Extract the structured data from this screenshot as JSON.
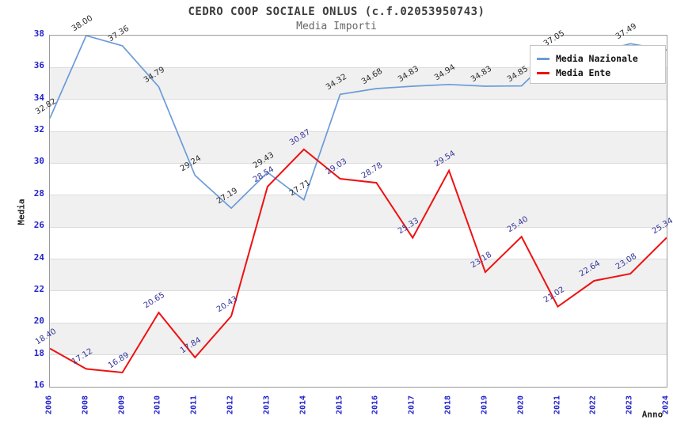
{
  "title": "CEDRO COOP SOCIALE ONLUS (c.f.02053950743)",
  "subtitle": "Media Importi",
  "colors": {
    "nazionale_line": "#6b9bd8",
    "ente_line": "#ee1111",
    "axis_tick_text": "#2222cc",
    "nazionale_label_text": "#2b2b2b",
    "ente_label_text": "#333399",
    "band_gray": "#f0f0f0",
    "grid": "#dcdcdc"
  },
  "chart_data": {
    "type": "line",
    "x": [
      "2006",
      "2008",
      "2009",
      "2010",
      "2011",
      "2012",
      "2013",
      "2014",
      "2015",
      "2016",
      "2017",
      "2018",
      "2019",
      "2020",
      "2021",
      "2022",
      "2023",
      "2024"
    ],
    "xlabel": "Anno",
    "ylabel": "Media",
    "ylim": [
      16,
      38
    ],
    "yticks": [
      16,
      18,
      20,
      22,
      24,
      26,
      28,
      30,
      32,
      34,
      36,
      38
    ],
    "grid": "horizontal",
    "banding": "alternating gray bands every 2 units",
    "legend_position": "top-right",
    "series": [
      {
        "name": "Media Nazionale",
        "color": "#6b9bd8",
        "label_color": "#2b2b2b",
        "values": [
          32.82,
          38.0,
          37.36,
          34.79,
          29.24,
          27.19,
          29.43,
          27.71,
          34.32,
          34.68,
          34.83,
          34.94,
          34.83,
          34.85,
          37.05,
          36.9,
          37.49,
          37.1
        ],
        "labels": [
          "32.82",
          "38.00",
          "37.36",
          "34.79",
          "29.24",
          "27.19",
          "29.43",
          "27.71",
          "34.32",
          "34.68",
          "34.83",
          "34.94",
          "34.83",
          "34.85",
          "37.05",
          "",
          "37.49",
          ""
        ]
      },
      {
        "name": "Media Ente",
        "color": "#ee1111",
        "label_color": "#333399",
        "values": [
          18.4,
          17.12,
          16.89,
          20.65,
          17.84,
          20.43,
          28.54,
          30.87,
          29.03,
          28.78,
          25.33,
          29.54,
          23.18,
          25.4,
          21.02,
          22.64,
          23.08,
          25.34
        ],
        "labels": [
          "18.40",
          "17.12",
          "16.89",
          "20.65",
          "17.84",
          "20.43",
          "28.54",
          "30.87",
          "29.03",
          "28.78",
          "25.33",
          "29.54",
          "23.18",
          "25.40",
          "21.02",
          "22.64",
          "23.08",
          "25.34"
        ]
      }
    ]
  },
  "legend": {
    "items": [
      {
        "label": "Media Nazionale"
      },
      {
        "label": "Media Ente"
      }
    ]
  }
}
